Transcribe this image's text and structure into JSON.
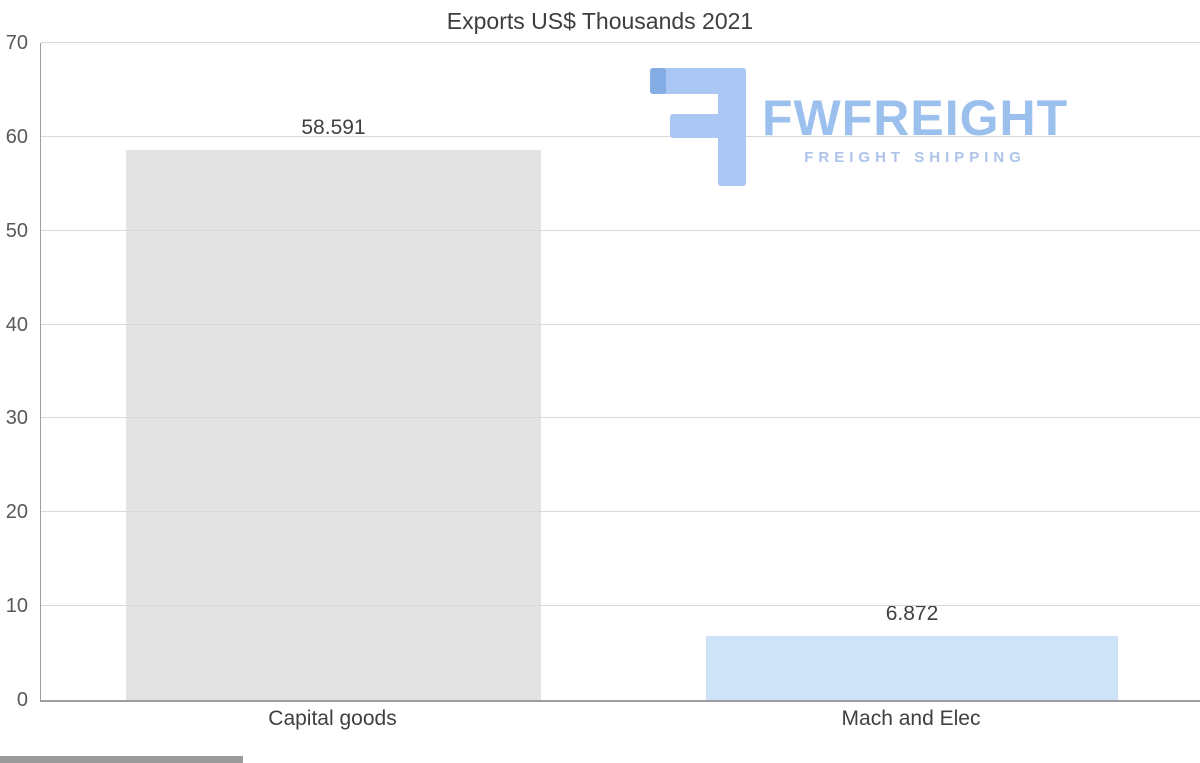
{
  "chart_data": {
    "type": "bar",
    "title": "Exports US$ Thousands 2021",
    "categories": [
      "Capital goods",
      "Mach and Elec"
    ],
    "values": [
      58.591,
      6.872
    ],
    "value_labels": [
      "58.591",
      "6.872"
    ],
    "ylim": [
      0,
      70
    ],
    "yticks": [
      0,
      10,
      20,
      30,
      40,
      50,
      60,
      70
    ],
    "xlabel": "",
    "ylabel": "",
    "grid": true,
    "legend": false,
    "bar_colors": [
      "#e3e3e3",
      "#cfe3f8"
    ]
  },
  "logo": {
    "name": "FWFREIGHT",
    "tagline": "FREIGHT SHIPPING",
    "icon": "fwfreight-logo-icon",
    "text_color": "#9cc0ee",
    "tagline_color": "#aec3e9",
    "icon_color": "#a9c7f2",
    "icon_accent_color": "#85ade5"
  },
  "colors": {
    "background": "#ffffff",
    "gridline": "#d9d9d9",
    "axis": "#9e9e9e",
    "text": "#404040",
    "tick_text": "#595959"
  }
}
